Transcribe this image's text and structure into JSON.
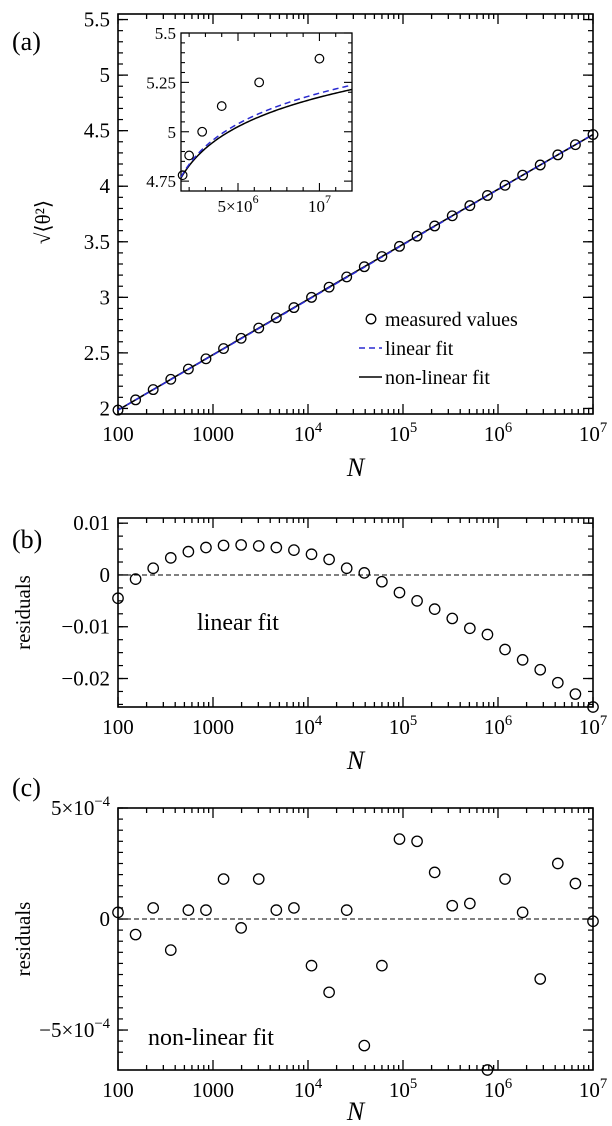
{
  "chart_data": [
    {
      "panel": "(a)",
      "type": "scatter",
      "xscale": "log",
      "xlim": [
        100,
        10000000
      ],
      "ylim": [
        1.95,
        5.55
      ],
      "xlabel": "N",
      "ylabel": "√⟨θ²⟩",
      "xticks": [
        {
          "value": 100,
          "label": "100"
        },
        {
          "value": 1000,
          "label": "1000"
        },
        {
          "value": 10000,
          "base": "10",
          "exp": "4"
        },
        {
          "value": 100000,
          "base": "10",
          "exp": "5"
        },
        {
          "value": 1000000,
          "base": "10",
          "exp": "6"
        },
        {
          "value": 10000000,
          "base": "10",
          "exp": "7"
        }
      ],
      "yticks": [
        {
          "value": 2,
          "label": "2"
        },
        {
          "value": 2.5,
          "label": "2.5"
        },
        {
          "value": 3,
          "label": "3"
        },
        {
          "value": 3.5,
          "label": "3.5"
        },
        {
          "value": 4,
          "label": "4"
        },
        {
          "value": 4.5,
          "label": "4.5"
        },
        {
          "value": 5,
          "label": "5"
        },
        {
          "value": 5.5,
          "label": "5.5"
        }
      ],
      "legend": {
        "position": "bottom-right",
        "entries": [
          "measured values",
          "linear fit",
          "non-linear fit"
        ]
      },
      "series": [
        {
          "name": "measured values",
          "style": "open-circle"
        },
        {
          "name": "linear fit",
          "style": "dashed",
          "color": "#2a2ad0"
        },
        {
          "name": "non-linear fit",
          "style": "solid",
          "color": "#000000"
        }
      ],
      "inset": {
        "xscale": "linear",
        "xlim": [
          1500000,
          12000000
        ],
        "ylim": [
          4.7,
          5.5
        ],
        "xticks": [
          {
            "value": 5000000,
            "mant": "5×10",
            "exp": "6"
          },
          {
            "value": 10000000,
            "base": "10",
            "exp": "7"
          }
        ],
        "yticks": [
          {
            "value": 4.75,
            "label": "4.75"
          },
          {
            "value": 5,
            "label": "5"
          },
          {
            "value": 5.25,
            "label": "5.25"
          },
          {
            "value": 5.5,
            "label": "5.5"
          }
        ],
        "points": [
          [
            1600000,
            4.78
          ],
          [
            2000000,
            4.88
          ],
          [
            2800000,
            5.0
          ],
          [
            4000000,
            5.13
          ],
          [
            6300000,
            5.25
          ],
          [
            10000000,
            5.37
          ]
        ]
      }
    },
    {
      "panel": "(b)",
      "type": "scatter",
      "xscale": "log",
      "xlim": [
        100,
        10000000
      ],
      "ylim": [
        -0.0255,
        0.011
      ],
      "xlabel": "N",
      "ylabel": "residuals",
      "annotation": "linear fit",
      "xticks": [
        {
          "value": 100,
          "label": "100"
        },
        {
          "value": 1000,
          "label": "1000"
        },
        {
          "value": 10000,
          "base": "10",
          "exp": "4"
        },
        {
          "value": 100000,
          "base": "10",
          "exp": "5"
        },
        {
          "value": 1000000,
          "base": "10",
          "exp": "6"
        },
        {
          "value": 10000000,
          "base": "10",
          "exp": "7"
        }
      ],
      "yticks": [
        {
          "value": 0.01,
          "label": "0.01"
        },
        {
          "value": 0,
          "label": "0"
        },
        {
          "value": -0.01,
          "label": "−0.01"
        },
        {
          "value": -0.02,
          "label": "−0.02"
        }
      ],
      "residuals": [
        -0.0045,
        -0.0008,
        0.0013,
        0.0033,
        0.0045,
        0.0053,
        0.0057,
        0.0058,
        0.0056,
        0.0053,
        0.0048,
        0.004,
        0.003,
        0.0013,
        0.0004,
        -0.0013,
        -0.0034,
        -0.005,
        -0.0066,
        -0.0084,
        -0.0103,
        -0.0115,
        -0.0144,
        -0.0164,
        -0.0183,
        -0.0208,
        -0.023,
        -0.0255
      ]
    },
    {
      "panel": "(c)",
      "type": "scatter",
      "xscale": "log",
      "xlim": [
        100,
        10000000
      ],
      "ylim": [
        -0.00068,
        0.0005
      ],
      "xlabel": "N",
      "ylabel": "residuals",
      "annotation": "non-linear fit",
      "xticks": [
        {
          "value": 100,
          "label": "100"
        },
        {
          "value": 1000,
          "label": "1000"
        },
        {
          "value": 10000,
          "base": "10",
          "exp": "4"
        },
        {
          "value": 100000,
          "base": "10",
          "exp": "5"
        },
        {
          "value": 1000000,
          "base": "10",
          "exp": "6"
        },
        {
          "value": 10000000,
          "base": "10",
          "exp": "7"
        }
      ],
      "yticks": [
        {
          "value": 0.0005,
          "mant": "5×10",
          "exp": "−4"
        },
        {
          "value": 0,
          "label": "0"
        },
        {
          "value": -0.0005,
          "mant": "−5×10",
          "exp": "−4"
        }
      ],
      "residuals": [
        3e-05,
        -7e-05,
        5e-05,
        -0.00014,
        4e-05,
        4e-05,
        0.00018,
        -4e-05,
        0.00018,
        4e-05,
        5e-05,
        -0.00021,
        -0.00033,
        4e-05,
        -0.00057,
        -0.00021,
        0.00036,
        0.00035,
        0.00021,
        6e-05,
        7e-05,
        -0.00068,
        0.00018,
        3e-05,
        -0.00027,
        0.00025,
        0.00016,
        -1e-05
      ]
    }
  ]
}
